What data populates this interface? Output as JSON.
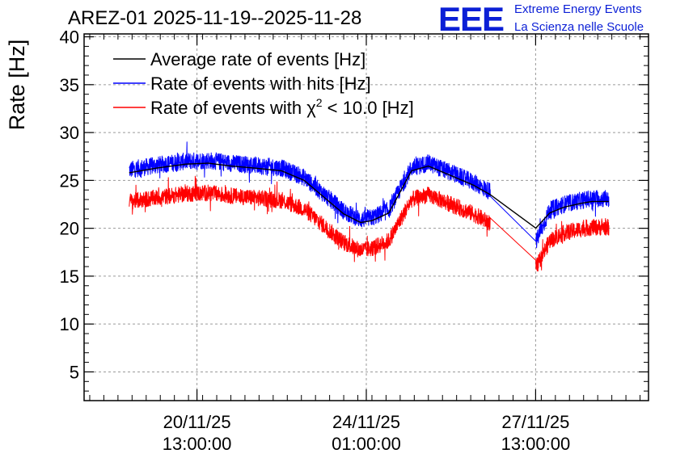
{
  "header": {
    "title": "AREZ-01 2025-11-19--2025-11-28",
    "logo_text": "EEE",
    "logo_line1": "Extreme Energy Events",
    "logo_line2": "La Scienza nelle Scuole"
  },
  "colors": {
    "logo": "#0b1fd6",
    "grid": "#9a9a9a"
  },
  "chart_data": {
    "type": "line",
    "title": "AREZ-01 2025-11-19--2025-11-28",
    "xlabel": "",
    "ylabel": "Rate [Hz]",
    "xlim": [
      0,
      10
    ],
    "ylim": [
      2,
      40.3
    ],
    "y_ticks": [
      5,
      10,
      15,
      20,
      25,
      30,
      35,
      40
    ],
    "x_ticks": [
      {
        "x": 2.0,
        "date": "20/11/25",
        "time": "13:00:00"
      },
      {
        "x": 5.0,
        "date": "24/11/25",
        "time": "01:00:00"
      },
      {
        "x": 8.0,
        "date": "27/11/25",
        "time": "13:00:00"
      }
    ],
    "grid": true,
    "legend_position": "top-left",
    "x_values": [
      0.8,
      1.3,
      1.8,
      2.2,
      2.6,
      3.0,
      3.5,
      3.9,
      4.3,
      4.6,
      4.9,
      5.1,
      5.4,
      5.8,
      6.1,
      6.5,
      6.9,
      7.2,
      8.0,
      8.25,
      8.5,
      8.8,
      9.0,
      9.3
    ],
    "series": [
      {
        "name": "Average rate of events [Hz]",
        "legend_label": "Average rate of events [Hz]",
        "superscript": "",
        "legend_suffix": "",
        "color": "#000000",
        "noise": 0,
        "values": [
          25.8,
          26.3,
          26.7,
          26.8,
          26.5,
          26.3,
          26.0,
          25.0,
          23.0,
          21.5,
          20.6,
          20.8,
          21.6,
          26.0,
          26.5,
          25.5,
          24.5,
          23.5,
          20.0,
          21.6,
          22.2,
          22.6,
          22.8,
          22.8
        ]
      },
      {
        "name": "Rate of events with hits [Hz]",
        "legend_label": "Rate of events with hits [Hz]",
        "superscript": "",
        "legend_suffix": "",
        "color": "#0000ff",
        "noise": 0.9,
        "values": [
          26.1,
          26.6,
          27.0,
          27.1,
          26.8,
          26.6,
          26.3,
          25.3,
          23.3,
          21.8,
          20.9,
          21.1,
          21.9,
          26.3,
          26.8,
          25.8,
          24.8,
          23.8,
          18.5,
          21.9,
          22.5,
          22.9,
          23.1,
          23.1
        ]
      },
      {
        "name": "Rate of events with chi2 < 10.0 [Hz]",
        "legend_label": "Rate of events with χ",
        "superscript": "2",
        "legend_suffix": " < 10.0 [Hz]",
        "color": "#ff0000",
        "noise": 0.85,
        "values": [
          22.8,
          23.2,
          23.6,
          23.7,
          23.4,
          23.2,
          22.9,
          22.0,
          20.0,
          18.5,
          17.7,
          17.9,
          18.7,
          23.0,
          23.5,
          22.5,
          21.5,
          20.5,
          15.8,
          18.7,
          19.5,
          19.9,
          20.1,
          20.1
        ]
      }
    ],
    "gap": {
      "from": 7.2,
      "to": 8.0
    }
  }
}
